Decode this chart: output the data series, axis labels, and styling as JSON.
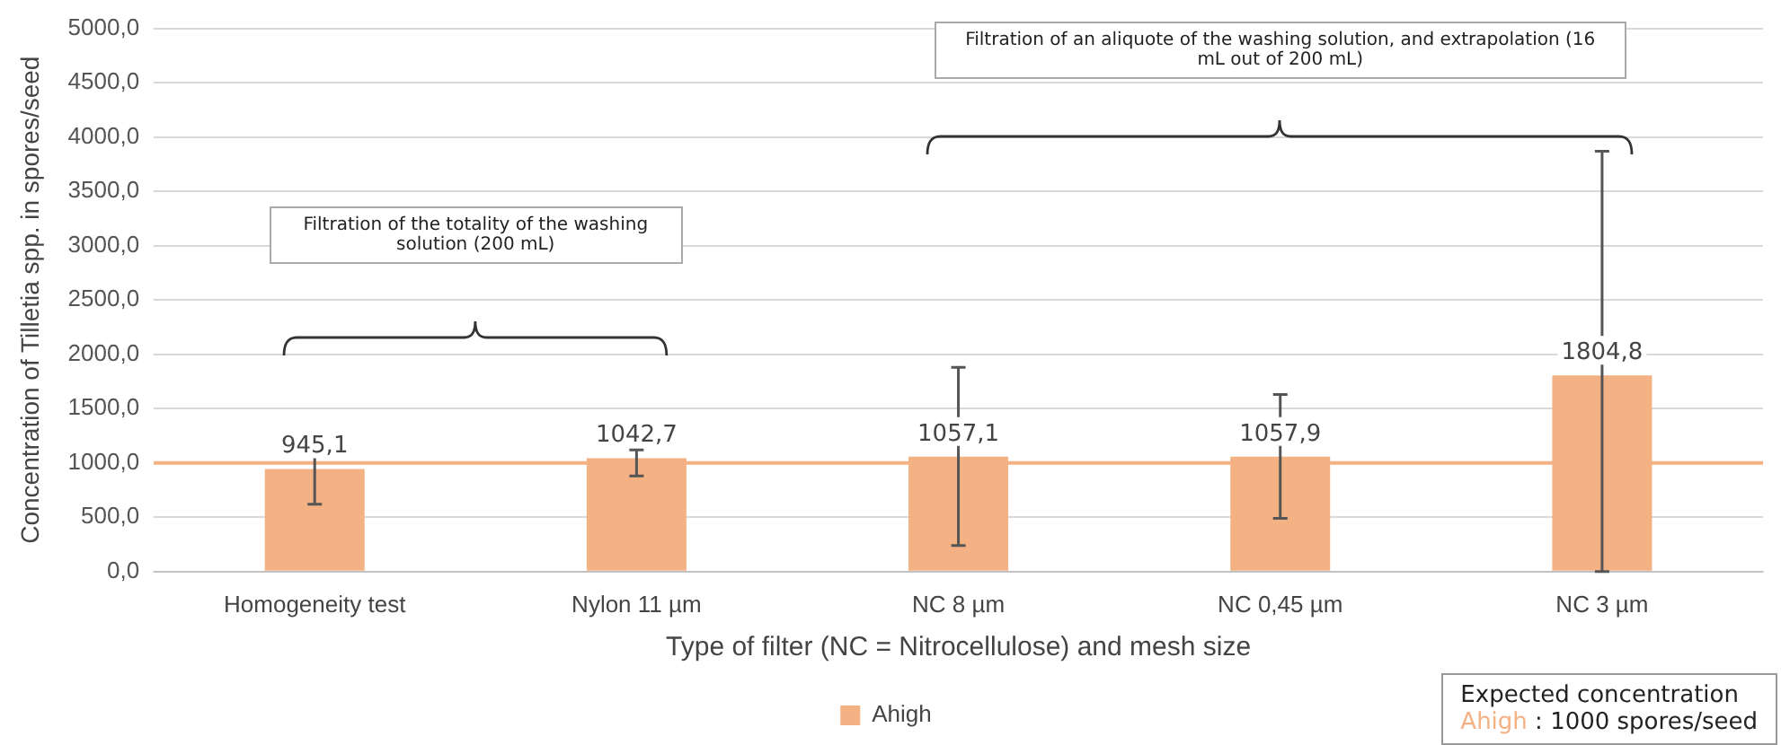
{
  "chart_data": {
    "type": "bar",
    "xlabel": "Type of filter (NC = Nitrocellulose) and mesh size",
    "ylabel": "Concentration of Tilletia spp. in spores/seed",
    "categories": [
      "Homogeneity test",
      "Nylon 11 µm",
      "NC 8 µm",
      "NC 0,45 µm",
      "NC 3 µm"
    ],
    "series": [
      {
        "name": "Ahigh",
        "color": "#f4b183",
        "values": [
          945.1,
          1042.7,
          1057.1,
          1057.9,
          1804.8
        ],
        "value_labels": [
          "945,1",
          "1042,7",
          "1057,1",
          "1057,9",
          "1804,8"
        ],
        "errors": [
          [
            620,
            1180
          ],
          [
            880,
            1120
          ],
          [
            240,
            1880
          ],
          [
            490,
            1630
          ],
          [
            0,
            3870
          ]
        ]
      }
    ],
    "ylim": [
      0,
      5000
    ],
    "yticks": [
      {
        "value": 0,
        "label": "0,0"
      },
      {
        "value": 500,
        "label": "500,0"
      },
      {
        "value": 1000,
        "label": "1000,0"
      },
      {
        "value": 1500,
        "label": "1500,0"
      },
      {
        "value": 2000,
        "label": "2000,0"
      },
      {
        "value": 2500,
        "label": "2500,0"
      },
      {
        "value": 3000,
        "label": "3000,0"
      },
      {
        "value": 3500,
        "label": "3500,0"
      },
      {
        "value": 4000,
        "label": "4000,0"
      },
      {
        "value": 4500,
        "label": "4500,0"
      },
      {
        "value": 5000,
        "label": "5000,0"
      }
    ],
    "ref_lines": [
      {
        "axis": "y",
        "value": 1000,
        "color": "#f4b183"
      }
    ],
    "annotations": [
      "Filtration of the totality of the washing solution (200 mL)",
      "Filtration of an aliquote of the washing solution, and extrapolation (16 mL out of 200 mL)",
      "Expected concentration\nAhigh : 1000 spores/seed"
    ],
    "grid": "y",
    "legend": "bottom"
  }
}
